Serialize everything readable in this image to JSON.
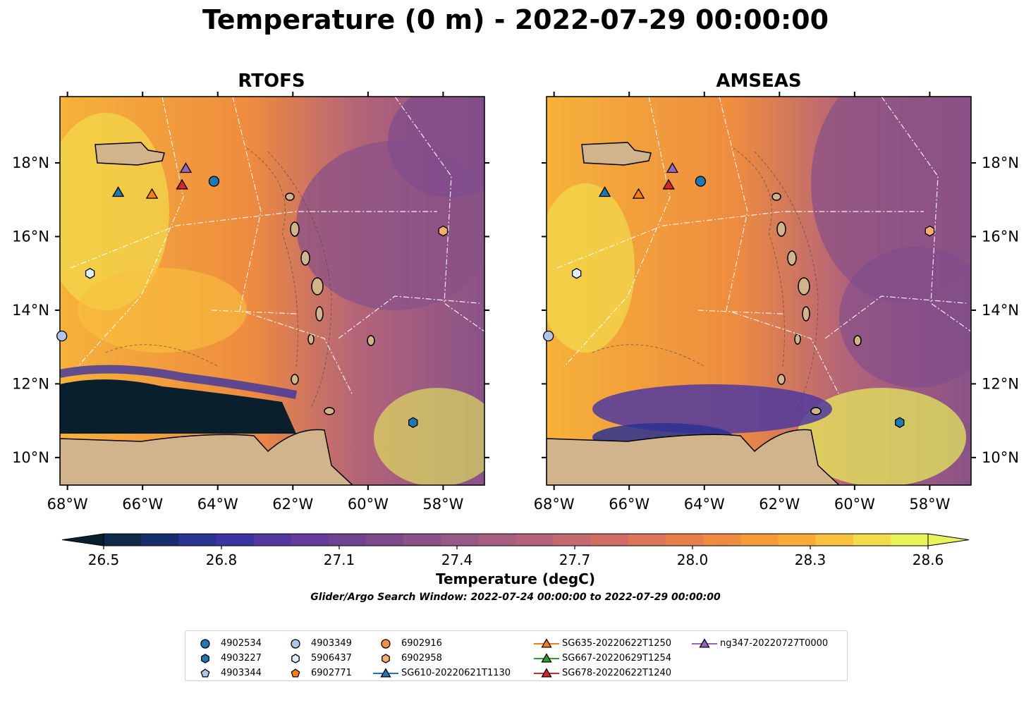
{
  "figure": {
    "suptitle": "Temperature (0 m) - 2022-07-29 00:00:00",
    "search_window": "Glider/Argo Search Window: 2022-07-24 00:00:00 to 2022-07-29 00:00:00"
  },
  "map_extent": {
    "lon": [
      -68.2,
      -56.9
    ],
    "lat": [
      9.25,
      19.8
    ]
  },
  "panels": [
    {
      "id": "rtofs",
      "title": "RTOFS"
    },
    {
      "id": "amseas",
      "title": "AMSEAS"
    }
  ],
  "axes": {
    "lon_ticks": [
      "68°W",
      "66°W",
      "64°W",
      "62°W",
      "60°W",
      "58°W"
    ],
    "lon_values": [
      -68,
      -66,
      -64,
      -62,
      -60,
      -58
    ],
    "lat_ticks": [
      "18°N",
      "16°N",
      "14°N",
      "12°N",
      "10°N"
    ],
    "lat_values": [
      18,
      16,
      14,
      12,
      10
    ]
  },
  "colorbar": {
    "label": "Temperature (degC)",
    "tick_labels": [
      "26.5",
      "26.8",
      "27.1",
      "27.4",
      "27.7",
      "28.0",
      "28.3",
      "28.6"
    ],
    "min": 26.5,
    "max": 28.6,
    "levels": 22,
    "extend": "both",
    "colors": [
      "#0a1f2e",
      "#0e2a48",
      "#162f6b",
      "#2a3390",
      "#3c34a0",
      "#50389f",
      "#613c9a",
      "#704392",
      "#7d4b8c",
      "#8a5287",
      "#985a83",
      "#a65f7e",
      "#b46479",
      "#c26a71",
      "#d06e66",
      "#dc7559",
      "#e77f4b",
      "#ee8b3f",
      "#f49a38",
      "#f8ab36",
      "#f8c13e",
      "#f2dc4c",
      "#e8f35a"
    ]
  },
  "land_color": "#d2b48c",
  "platforms": [
    {
      "label": "4902534",
      "marker": "circle",
      "color": "#1f77b4",
      "lon": -64.1,
      "lat": 17.5
    },
    {
      "label": "4903227",
      "marker": "hexagon",
      "color": "#1f77b4",
      "lon": -58.8,
      "lat": 10.95
    },
    {
      "label": "4903344",
      "marker": "pentagon",
      "color": "#aec7e8",
      "lon": null,
      "lat": null
    },
    {
      "label": "4903349",
      "marker": "circle",
      "color": "#aec7e8",
      "lon": -68.15,
      "lat": 13.3
    },
    {
      "label": "5906437",
      "marker": "hexagon",
      "color": "#dceefa",
      "lon": -67.4,
      "lat": 15.0
    },
    {
      "label": "6902771",
      "marker": "pentagon",
      "color": "#ff7f0e",
      "lon": null,
      "lat": null
    },
    {
      "label": "6902916",
      "marker": "circle",
      "color": "#fd8d3c",
      "lon": null,
      "lat": null
    },
    {
      "label": "6902958",
      "marker": "hexagon",
      "color": "#fdae6b",
      "lon": -58.0,
      "lat": 16.15
    },
    {
      "label": "SG610-20220621T1130",
      "marker": "triangle",
      "color": "#1f77b4",
      "line": "#1f77b4",
      "lon": -66.65,
      "lat": 17.2
    },
    {
      "label": "SG635-20220622T1250",
      "marker": "triangle",
      "color": "#ff7f0e",
      "line": "#ff7f0e",
      "lon": -65.75,
      "lat": 17.15
    },
    {
      "label": "SG667-20220629T1254",
      "marker": "triangle",
      "color": "#2ca02c",
      "line": "#2ca02c",
      "lon": null,
      "lat": null
    },
    {
      "label": "SG678-20220622T1240",
      "marker": "triangle",
      "color": "#d62728",
      "line": "#d62728",
      "lon": -64.95,
      "lat": 17.4
    },
    {
      "label": "ng347-20220727T0000",
      "marker": "triangle",
      "color": "#9467bd",
      "line": "#9467bd",
      "lon": -64.85,
      "lat": 17.85
    }
  ]
}
